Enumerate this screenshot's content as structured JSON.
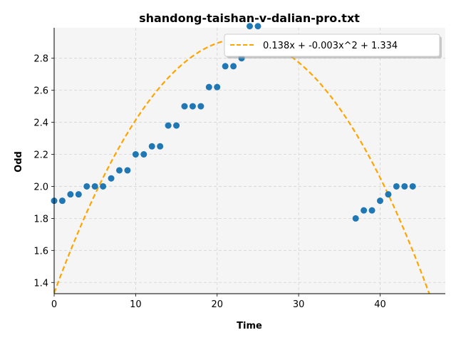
{
  "chart_data": {
    "type": "scatter",
    "title": "shandong-taishan-v-dalian-pro.txt",
    "xlabel": "Time",
    "ylabel": "Odd",
    "xlim": [
      0,
      48
    ],
    "ylim": [
      1.33,
      2.99
    ],
    "x_ticks": [
      0,
      10,
      20,
      30,
      40
    ],
    "y_ticks": [
      1.4,
      1.6,
      1.8,
      2.0,
      2.2,
      2.4,
      2.6,
      2.8
    ],
    "grid": true,
    "legend_position": "top-right",
    "colors": {
      "points": "#1f77b4",
      "fit": "#ffa500",
      "plot_bg": "#f5f5f5",
      "grid": "#d3d3d3"
    },
    "series": [
      {
        "kind": "points",
        "x": [
          0,
          1,
          2,
          3,
          4,
          5,
          6,
          7,
          8,
          9,
          10,
          11,
          12,
          13,
          14,
          15,
          16,
          17,
          18,
          19,
          20,
          21,
          22,
          23,
          24,
          25,
          37,
          38,
          39,
          40,
          41,
          42,
          43,
          44
        ],
        "y": [
          1.91,
          1.91,
          1.95,
          1.95,
          2.0,
          2.0,
          2.0,
          2.05,
          2.1,
          2.1,
          2.2,
          2.2,
          2.25,
          2.25,
          2.38,
          2.38,
          2.5,
          2.5,
          2.5,
          2.62,
          2.62,
          2.75,
          2.75,
          2.8,
          3.0,
          3.0,
          1.8,
          1.85,
          1.85,
          1.91,
          1.95,
          2.0,
          2.0,
          2.0
        ]
      },
      {
        "kind": "fit",
        "name": "0.138x + -0.003x^2 + 1.334",
        "coefficients": {
          "a": 1.334,
          "b": 0.138,
          "c": -0.003
        }
      }
    ]
  }
}
